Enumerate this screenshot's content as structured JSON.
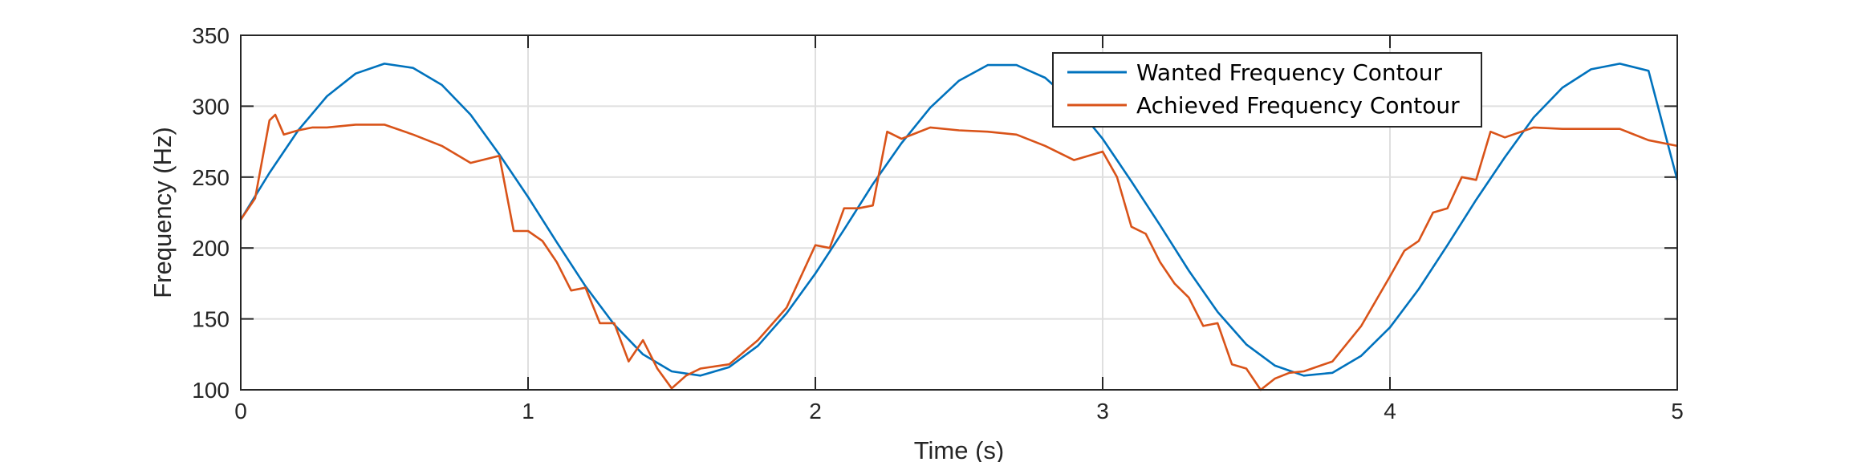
{
  "chart_data": {
    "type": "line",
    "xlabel": "Time (s)",
    "ylabel": "Frequency (Hz)",
    "xlim": [
      0,
      5
    ],
    "ylim": [
      100,
      350
    ],
    "xticks": [
      0,
      1,
      2,
      3,
      4,
      5
    ],
    "yticks": [
      100,
      150,
      200,
      250,
      300,
      350
    ],
    "grid": true,
    "legend_position": "top-right",
    "series": [
      {
        "name": "Wanted Frequency Contour",
        "color": "#0072BD",
        "formula": "220 + 110*sin(2*pi*t/2.05)",
        "x": [
          0,
          0.1,
          0.2,
          0.3,
          0.4,
          0.5,
          0.6,
          0.7,
          0.8,
          0.9,
          1.0,
          1.1,
          1.2,
          1.3,
          1.4,
          1.5,
          1.6,
          1.7,
          1.8,
          1.9,
          2.0,
          2.1,
          2.2,
          2.3,
          2.4,
          2.5,
          2.6,
          2.7,
          2.8,
          2.9,
          3.0,
          3.1,
          3.2,
          3.3,
          3.4,
          3.5,
          3.6,
          3.7,
          3.8,
          3.9,
          4.0,
          4.1,
          4.2,
          4.3,
          4.4,
          4.5,
          4.6,
          4.7,
          4.8,
          4.9,
          5.0
        ],
        "y": [
          220,
          253,
          283,
          307,
          323,
          330,
          327,
          315,
          294,
          266,
          236,
          204,
          173,
          146,
          125,
          113,
          110,
          116,
          131,
          154,
          182,
          213,
          245,
          274,
          299,
          318,
          329,
          329,
          320,
          302,
          277,
          247,
          216,
          184,
          155,
          132,
          117,
          110,
          112,
          124,
          144,
          171,
          202,
          234,
          264,
          292,
          313,
          326,
          330,
          325,
          248
        ]
      },
      {
        "name": "Achieved Frequency Contour",
        "color": "#D95319",
        "x": [
          0,
          0.05,
          0.1,
          0.12,
          0.15,
          0.2,
          0.25,
          0.3,
          0.4,
          0.5,
          0.6,
          0.7,
          0.8,
          0.9,
          0.95,
          1.0,
          1.05,
          1.1,
          1.15,
          1.2,
          1.25,
          1.3,
          1.35,
          1.4,
          1.45,
          1.5,
          1.55,
          1.6,
          1.7,
          1.8,
          1.9,
          2.0,
          2.05,
          2.1,
          2.15,
          2.2,
          2.25,
          2.3,
          2.4,
          2.5,
          2.6,
          2.7,
          2.8,
          2.9,
          3.0,
          3.05,
          3.1,
          3.15,
          3.2,
          3.25,
          3.3,
          3.35,
          3.4,
          3.45,
          3.5,
          3.55,
          3.6,
          3.65,
          3.7,
          3.8,
          3.9,
          4.0,
          4.05,
          4.1,
          4.15,
          4.2,
          4.25,
          4.3,
          4.35,
          4.4,
          4.5,
          4.6,
          4.7,
          4.8,
          4.9,
          5.0
        ],
        "y": [
          220,
          235,
          290,
          294,
          280,
          283,
          285,
          285,
          287,
          287,
          280,
          272,
          260,
          265,
          212,
          212,
          205,
          190,
          170,
          172,
          147,
          147,
          120,
          135,
          115,
          101,
          110,
          115,
          118,
          135,
          158,
          202,
          200,
          228,
          228,
          230,
          282,
          277,
          285,
          283,
          282,
          280,
          272,
          262,
          268,
          250,
          215,
          210,
          190,
          175,
          165,
          145,
          147,
          118,
          115,
          100,
          108,
          112,
          113,
          120,
          145,
          180,
          198,
          205,
          225,
          228,
          250,
          248,
          282,
          278,
          285,
          284,
          284,
          284,
          276,
          272
        ]
      }
    ]
  }
}
